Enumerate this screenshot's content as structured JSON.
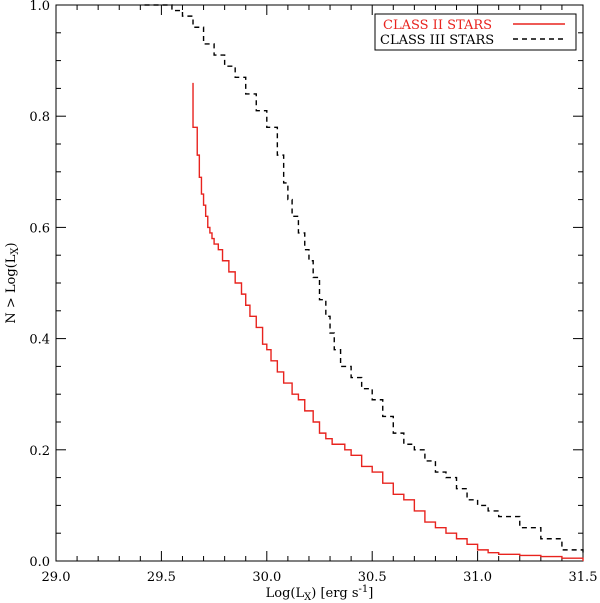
{
  "chart_data": {
    "type": "line",
    "xlabel": "Log(L",
    "xlabel_sub": "X",
    "xlabel_unit": ") [erg s",
    "xlabel_sup": "-1",
    "xlabel_end": "]",
    "ylabel": "N > Log(L",
    "ylabel_sub": "X",
    "ylabel_end": ")",
    "xlim": [
      29.0,
      31.5
    ],
    "ylim": [
      0.0,
      1.0
    ],
    "x_ticks": [
      "29.0",
      "29.5",
      "30.0",
      "30.5",
      "31.0",
      "31.5"
    ],
    "y_ticks": [
      "0.0",
      "0.2",
      "0.4",
      "0.6",
      "0.8",
      "1.0"
    ],
    "legend_position": "top-right",
    "series": [
      {
        "name": "CLASS II STARS",
        "color": "#e8231e",
        "style": "solid-step",
        "x": [
          29.65,
          29.65,
          29.67,
          29.68,
          29.69,
          29.7,
          29.71,
          29.72,
          29.73,
          29.74,
          29.75,
          29.77,
          29.79,
          29.82,
          29.85,
          29.88,
          29.9,
          29.92,
          29.95,
          29.98,
          30.0,
          30.02,
          30.05,
          30.08,
          30.12,
          30.15,
          30.18,
          30.22,
          30.25,
          30.28,
          30.31,
          30.34,
          30.37,
          30.4,
          30.45,
          30.5,
          30.55,
          30.6,
          30.65,
          30.7,
          30.75,
          30.8,
          30.85,
          30.9,
          30.95,
          31.0,
          31.05,
          31.1,
          31.2,
          31.3,
          31.4,
          31.5
        ],
        "y": [
          0.86,
          0.78,
          0.73,
          0.69,
          0.66,
          0.64,
          0.62,
          0.6,
          0.59,
          0.58,
          0.57,
          0.56,
          0.54,
          0.52,
          0.5,
          0.48,
          0.46,
          0.44,
          0.42,
          0.39,
          0.38,
          0.36,
          0.34,
          0.32,
          0.3,
          0.29,
          0.27,
          0.25,
          0.23,
          0.22,
          0.21,
          0.21,
          0.2,
          0.19,
          0.17,
          0.16,
          0.14,
          0.12,
          0.11,
          0.09,
          0.07,
          0.06,
          0.05,
          0.04,
          0.03,
          0.02,
          0.015,
          0.012,
          0.01,
          0.008,
          0.005,
          0.0
        ]
      },
      {
        "name": "CLASS III STARS",
        "color": "#000000",
        "style": "dashed-step",
        "x": [
          29.42,
          29.55,
          29.6,
          29.65,
          29.7,
          29.75,
          29.8,
          29.85,
          29.9,
          29.95,
          30.0,
          30.05,
          30.08,
          30.1,
          30.12,
          30.15,
          30.18,
          30.2,
          30.22,
          30.25,
          30.28,
          30.3,
          30.32,
          30.35,
          30.4,
          30.45,
          30.5,
          30.55,
          30.6,
          30.65,
          30.7,
          30.75,
          30.8,
          30.85,
          30.9,
          30.95,
          31.0,
          31.05,
          31.1,
          31.2,
          31.3,
          31.4,
          31.5
        ],
        "y": [
          1.0,
          0.99,
          0.98,
          0.96,
          0.93,
          0.91,
          0.89,
          0.87,
          0.84,
          0.81,
          0.78,
          0.73,
          0.68,
          0.65,
          0.62,
          0.59,
          0.56,
          0.54,
          0.51,
          0.47,
          0.44,
          0.41,
          0.38,
          0.35,
          0.33,
          0.31,
          0.29,
          0.26,
          0.23,
          0.21,
          0.2,
          0.18,
          0.16,
          0.15,
          0.13,
          0.11,
          0.1,
          0.09,
          0.08,
          0.06,
          0.04,
          0.02,
          0.01
        ]
      }
    ]
  }
}
